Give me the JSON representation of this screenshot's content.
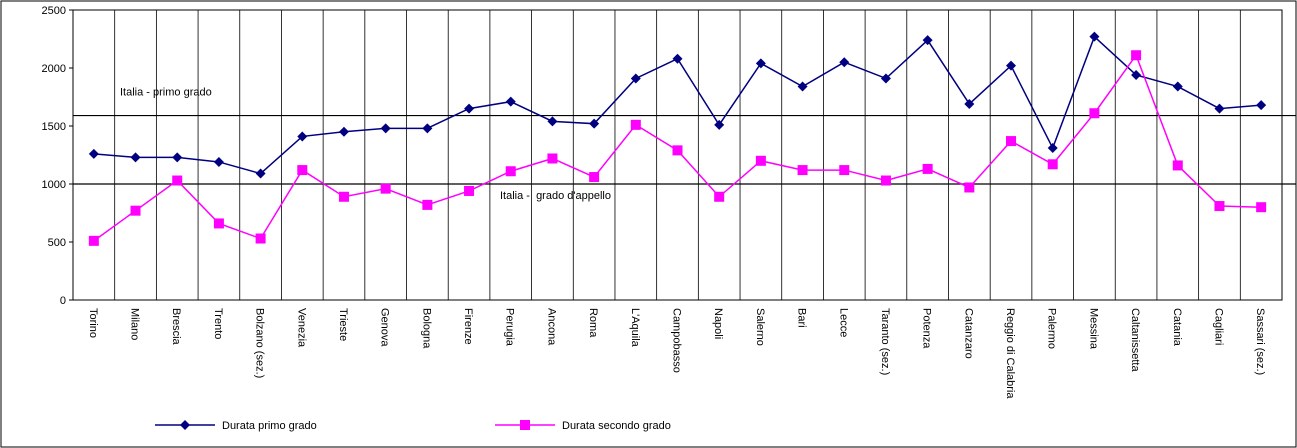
{
  "chart_data": {
    "type": "line",
    "categories": [
      "Torino",
      "Milano",
      "Brescia",
      "Trento",
      "Bolzano (sez.)",
      "Venezia",
      "Trieste",
      "Genova",
      "Bologna",
      "Firenze",
      "Perugia",
      "Ancona",
      "Roma",
      "L'Aquila",
      "Campobasso",
      "Napoli",
      "Salerno",
      "Bari",
      "Lecce",
      "Taranto (sez.)",
      "Potenza",
      "Catanzaro",
      "Reggio di Calabria",
      "Palermo",
      "Messina",
      "Caltanissetta",
      "Catania",
      "Cagliari",
      "Sassari (sez.)"
    ],
    "series": [
      {
        "name": "Durata primo grado",
        "color": "#000080",
        "marker": "diamond",
        "values": [
          1260,
          1230,
          1230,
          1190,
          1090,
          1410,
          1450,
          1480,
          1480,
          1650,
          1710,
          1540,
          1520,
          1910,
          2080,
          1510,
          2040,
          1840,
          2050,
          1910,
          2240,
          1690,
          2020,
          1310,
          2270,
          1940,
          1840,
          1650,
          1680
        ]
      },
      {
        "name": "Durata secondo grado",
        "color": "#ff00ff",
        "marker": "square",
        "values": [
          510,
          770,
          1030,
          660,
          530,
          1120,
          890,
          960,
          820,
          940,
          1110,
          1220,
          1060,
          1510,
          1290,
          890,
          1200,
          1120,
          1120,
          1030,
          1130,
          970,
          1370,
          1170,
          1610,
          2110,
          1160,
          810,
          800
        ]
      }
    ],
    "reference_lines": [
      {
        "label": "Italia - primo grado",
        "value": 1590
      },
      {
        "label": "Italia -  grado d'appello",
        "value": 1000
      }
    ],
    "ylim": [
      0,
      2500
    ],
    "yticks": [
      0,
      500,
      1000,
      1500,
      2000,
      2500
    ]
  }
}
